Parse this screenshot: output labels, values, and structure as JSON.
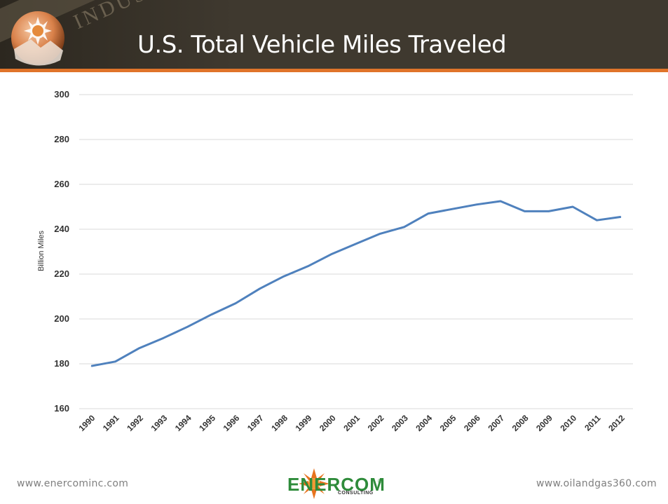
{
  "header": {
    "title": "U.S. Total Vehicle Miles Traveled",
    "banner_word": "INDUSTRY",
    "accent_color": "#e0742a",
    "background_color": "#3f392f"
  },
  "chart_data": {
    "type": "line",
    "title": "",
    "xlabel": "",
    "ylabel": "Billion Miles",
    "ylim": [
      160,
      300
    ],
    "yticks": [
      160,
      180,
      200,
      220,
      240,
      260,
      280,
      300
    ],
    "grid": true,
    "legend": "none",
    "line_color": "#4f81bd",
    "categories": [
      "1990",
      "1991",
      "1992",
      "1993",
      "1994",
      "1995",
      "1996",
      "1997",
      "1998",
      "1999",
      "2000",
      "2001",
      "2002",
      "2003",
      "2004",
      "2005",
      "2006",
      "2007",
      "2008",
      "2009",
      "2010",
      "2011",
      "2012"
    ],
    "series": [
      {
        "values": [
          179,
          181,
          187,
          191.5,
          196.5,
          202,
          207,
          213.5,
          219,
          223.5,
          229,
          233.5,
          238,
          241,
          247,
          249,
          251,
          252.5,
          248,
          248,
          250,
          244,
          245.5
        ]
      }
    ]
  },
  "footer": {
    "left_url": "www.enercominc.com",
    "right_url": "www.oilandgas360.com",
    "logo_text": "ENERCOM",
    "logo_sub": "CONSULTING",
    "logo_reg": "®"
  }
}
